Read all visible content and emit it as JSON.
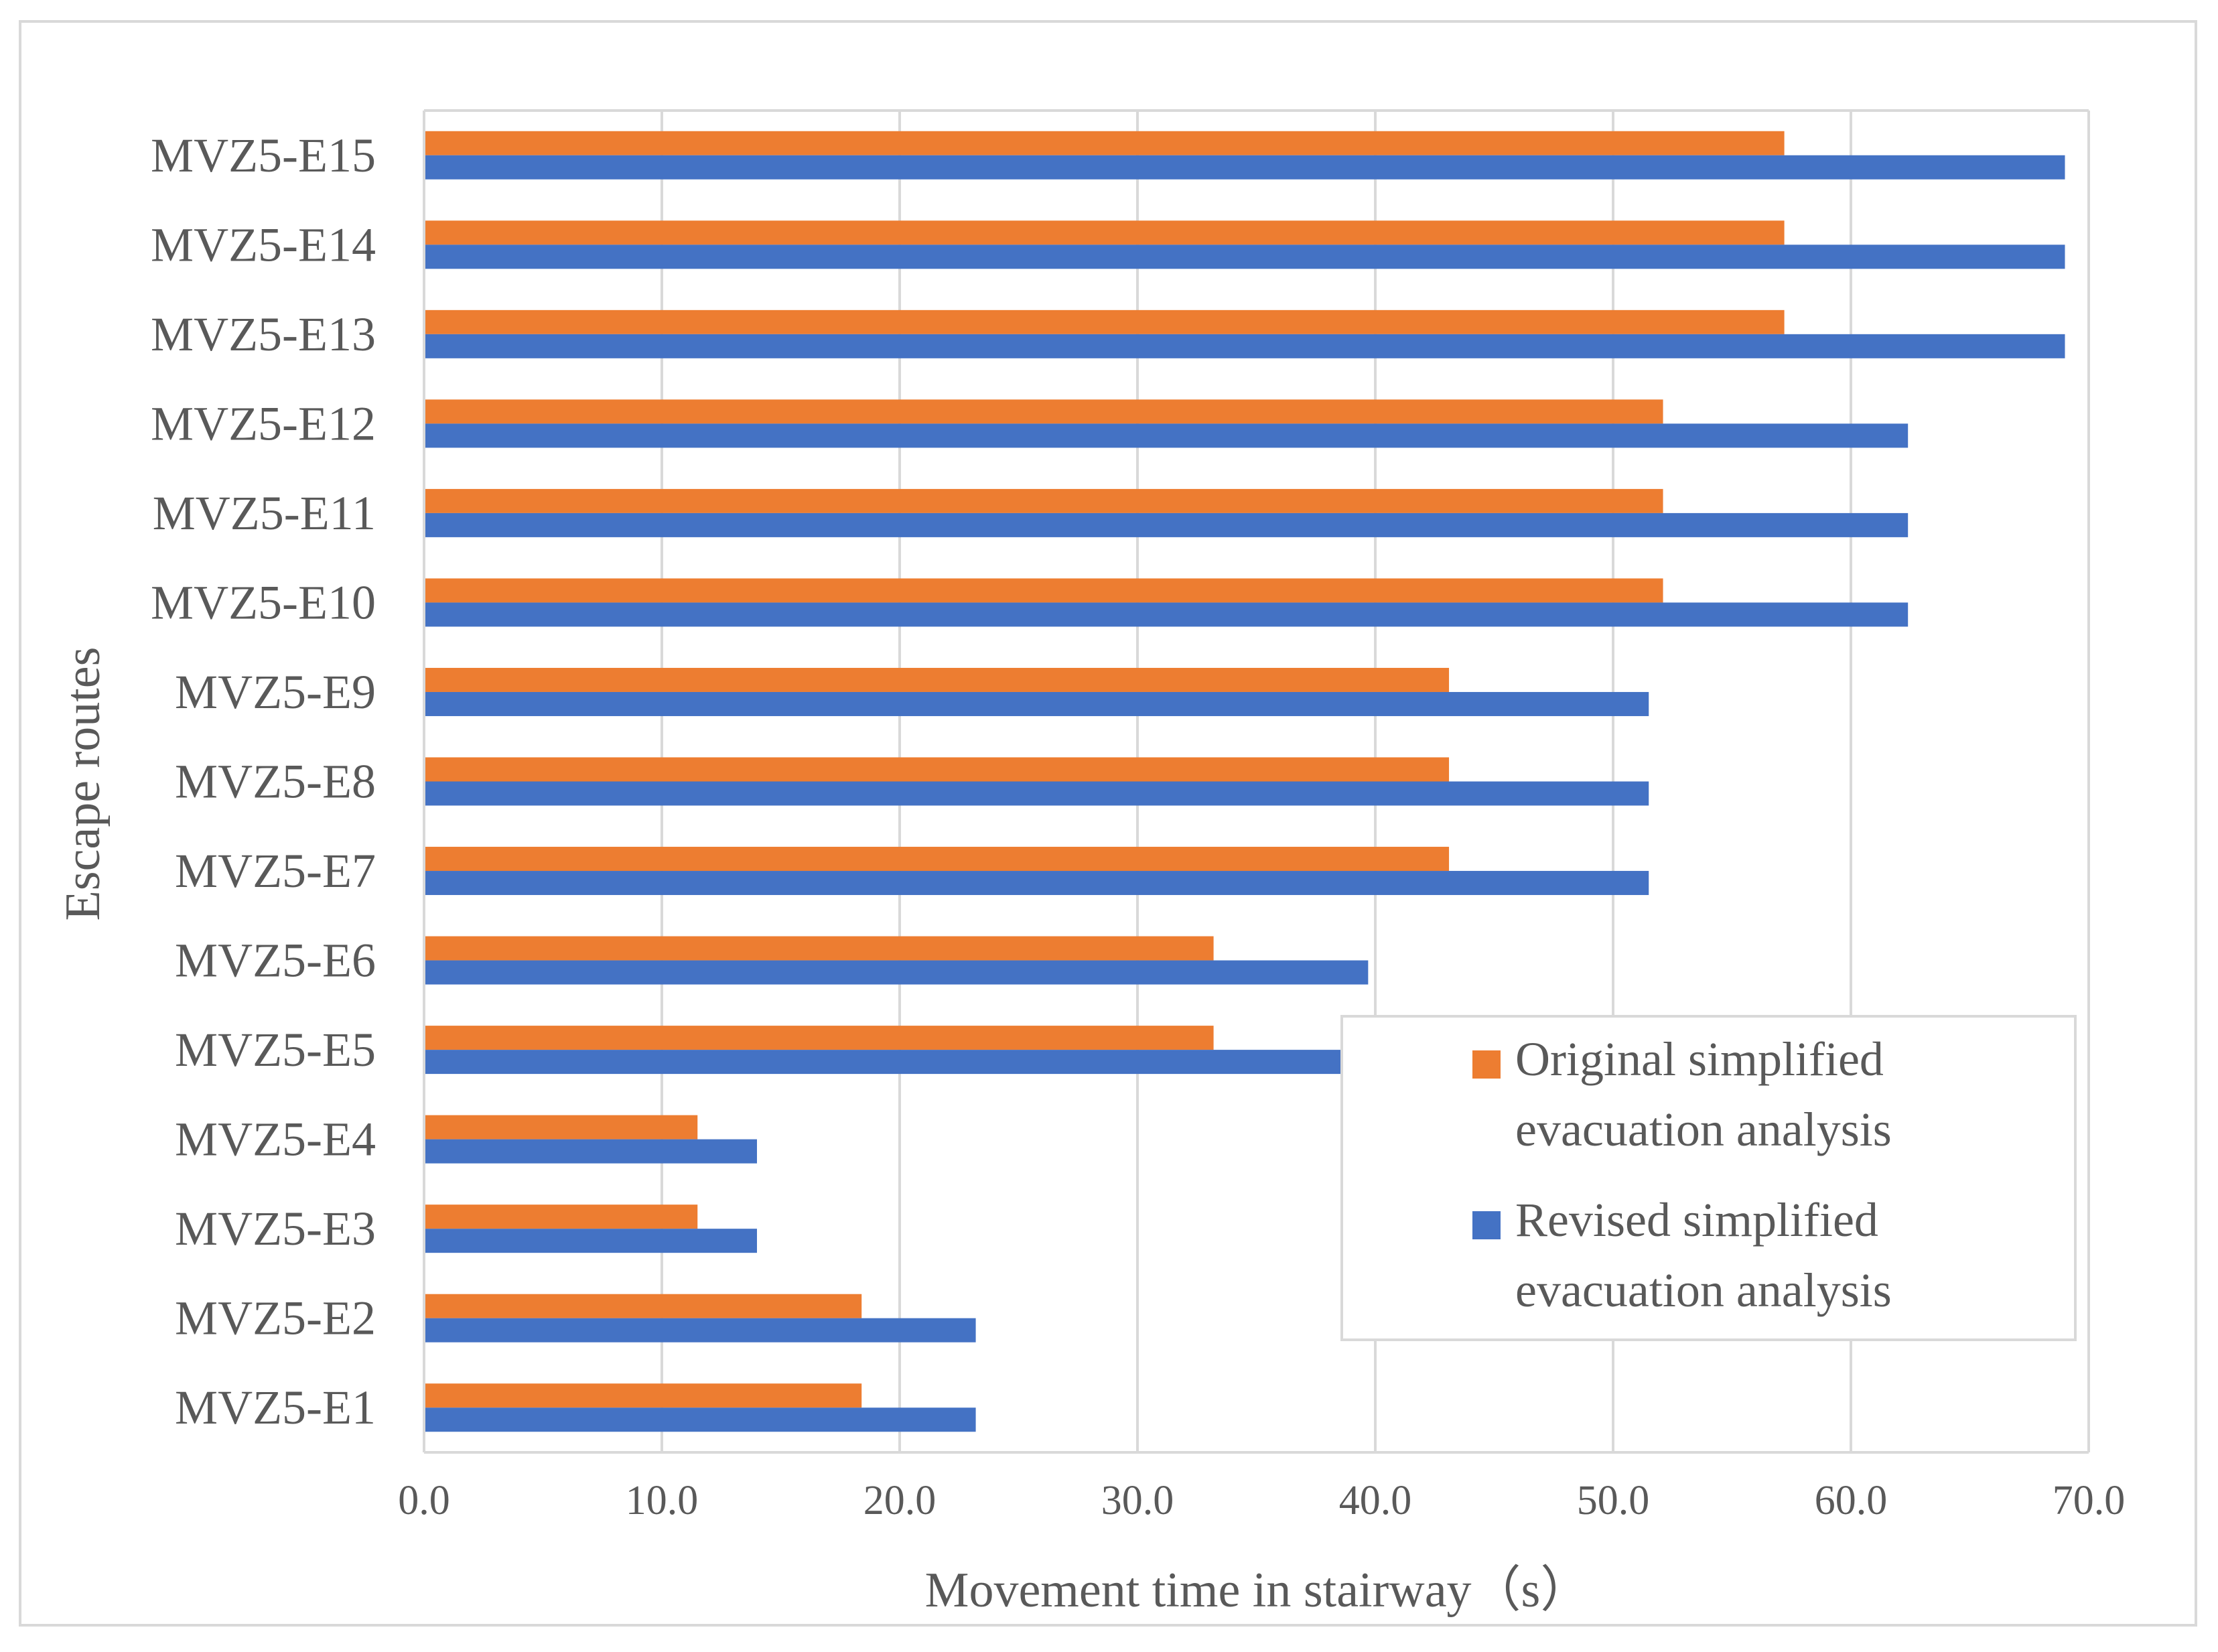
{
  "chart_data": {
    "type": "bar",
    "orientation": "horizontal",
    "title": "",
    "xlabel": "Movement time in stairway（s）",
    "ylabel": "Escape routes",
    "xlim": [
      0,
      70
    ],
    "x_ticks": [
      "0.0",
      "10.0",
      "20.0",
      "30.0",
      "40.0",
      "50.0",
      "60.0",
      "70.0"
    ],
    "grid": "vertical",
    "legend_position": "bottom-right",
    "categories": [
      "MVZ5-E1",
      "MVZ5-E2",
      "MVZ5-E3",
      "MVZ5-E4",
      "MVZ5-E5",
      "MVZ5-E6",
      "MVZ5-E7",
      "MVZ5-E8",
      "MVZ5-E9",
      "MVZ5-E10",
      "MVZ5-E11",
      "MVZ5-E12",
      "MVZ5-E13",
      "MVZ5-E14",
      "MVZ5-E15"
    ],
    "series": [
      {
        "name": "Original simplified evacuation analysis",
        "legend_lines": [
          "Original simplified",
          "evacuation analysis"
        ],
        "color": "#ed7d31",
        "values": [
          18.4,
          18.4,
          11.5,
          11.5,
          33.2,
          33.2,
          43.1,
          43.1,
          43.1,
          52.1,
          52.1,
          52.1,
          57.2,
          57.2,
          57.2
        ]
      },
      {
        "name": "Revised simplified evacuation analysis",
        "legend_lines": [
          "Revised simplified",
          "evacuation analysis"
        ],
        "color": "#4472c4",
        "values": [
          23.2,
          23.2,
          14.0,
          14.0,
          39.7,
          39.7,
          51.5,
          51.5,
          51.5,
          62.4,
          62.4,
          62.4,
          69.0,
          69.0,
          69.0
        ]
      }
    ]
  }
}
